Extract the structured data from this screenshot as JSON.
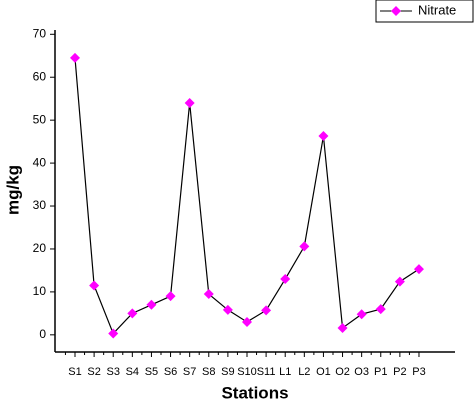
{
  "chart_data": {
    "type": "line",
    "x_label": "Stations",
    "y_label": "mg/kg",
    "categories": [
      "S1",
      "S2",
      "S3",
      "S4",
      "S5",
      "S6",
      "S7",
      "S8",
      "S9",
      "S10",
      "S11",
      "L1",
      "L2",
      "O1",
      "O2",
      "O3",
      "P1",
      "P2",
      "P3"
    ],
    "series": [
      {
        "name": "Nitrate",
        "color": "#ff00ff",
        "values": [
          64.5,
          11.5,
          0.3,
          5,
          7,
          9,
          54,
          9.5,
          5.8,
          3,
          5.7,
          13,
          20.6,
          46.3,
          1.6,
          4.8,
          6,
          12.4,
          15.3
        ]
      }
    ],
    "ylim": [
      -4,
      71
    ],
    "yticks": [
      0,
      10,
      20,
      30,
      40,
      50,
      60,
      70
    ],
    "legend": "top-right"
  }
}
